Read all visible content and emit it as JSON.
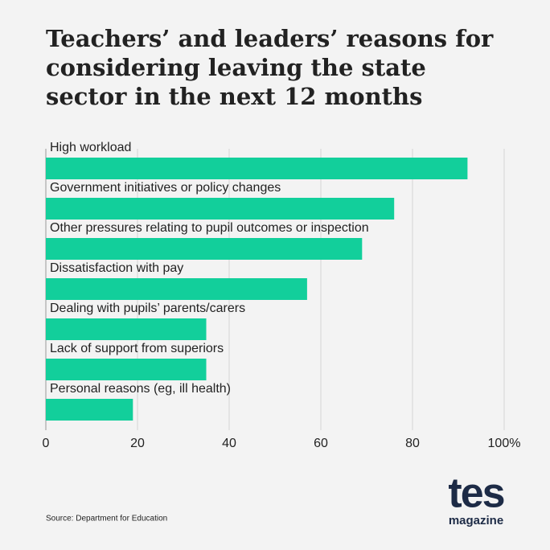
{
  "chart_data": {
    "type": "barh",
    "title": "Teachers’ and leaders’ reasons for considering leaving the state sector in the next 12 months",
    "categories": [
      "High workload",
      "Government initiatives or policy changes",
      "Other pressures relating to pupil outcomes or inspection",
      "Dissatisfaction with pay",
      "Dealing with pupils’ parents/carers",
      "Lack of support from superiors",
      "Personal reasons (eg, ill health)"
    ],
    "values": [
      92,
      76,
      69,
      57,
      35,
      35,
      19
    ],
    "color": "#12cf9b",
    "xlim": [
      0,
      100
    ],
    "xticks": [
      0,
      20,
      40,
      60,
      80,
      {
        "value": 100,
        "label": "100%"
      }
    ],
    "grid": true,
    "source": "Source: Department for Education",
    "logo": {
      "word": "tes",
      "sub": "magazine"
    }
  }
}
